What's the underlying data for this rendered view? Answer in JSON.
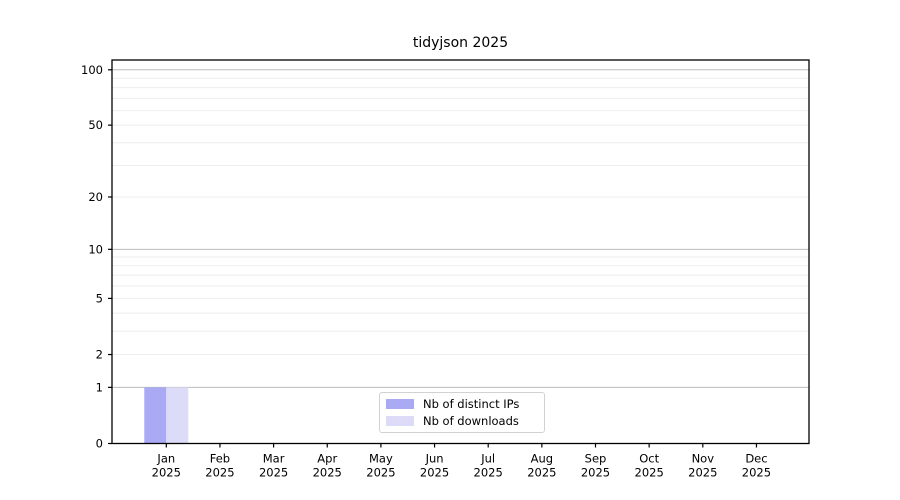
{
  "figure": {
    "title": "tidyjson 2025"
  },
  "chart_data": {
    "type": "bar",
    "title": "tidyjson 2025",
    "year": "2025",
    "months": [
      "Jan",
      "Feb",
      "Mar",
      "Apr",
      "May",
      "Jun",
      "Jul",
      "Aug",
      "Sep",
      "Oct",
      "Nov",
      "Dec"
    ],
    "series": [
      {
        "name": "Nb of distinct IPs",
        "color": "#a9a9f4",
        "values": [
          1,
          0,
          0,
          0,
          0,
          0,
          0,
          0,
          0,
          0,
          0,
          0
        ]
      },
      {
        "name": "Nb of downloads",
        "color": "#dcdcf9",
        "values": [
          1,
          0,
          0,
          0,
          0,
          0,
          0,
          0,
          0,
          0,
          0,
          0
        ]
      }
    ],
    "y_ticks": [
      100,
      50,
      20,
      10,
      5,
      2,
      1,
      0
    ],
    "y_scale": "log10(value+1)",
    "ylim": [
      0,
      113
    ],
    "grid": true,
    "grid_major_values": [
      1,
      10,
      100
    ],
    "grid_minor_values": [
      2,
      3,
      4,
      5,
      6,
      7,
      8,
      9,
      20,
      30,
      40,
      50,
      60,
      70,
      80,
      90
    ],
    "legend_position": "lower center",
    "colors": {
      "axis": "#000000",
      "text": "#000000",
      "grid_major": "#bcbcbc",
      "grid_minor": "#eeeeee"
    }
  }
}
